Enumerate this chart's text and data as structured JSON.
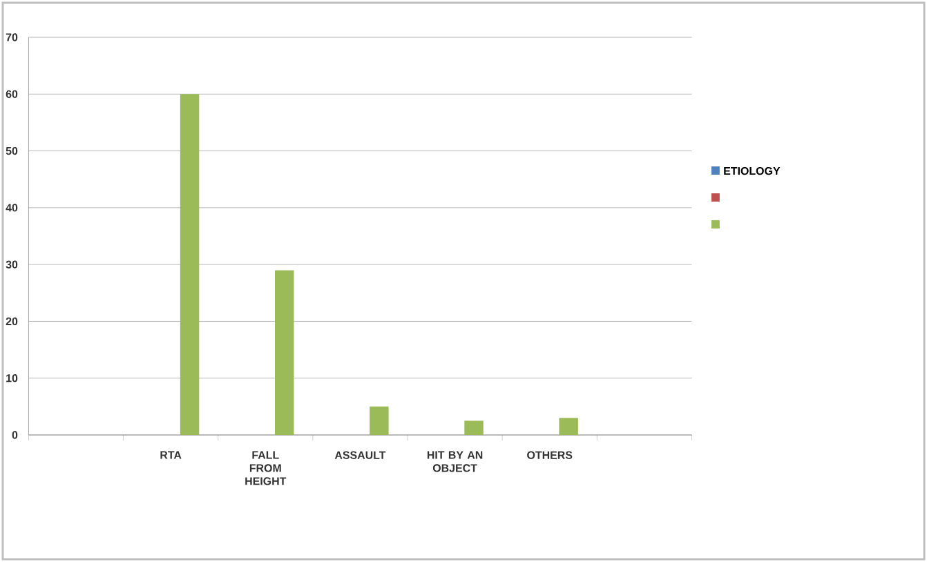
{
  "chart_data": {
    "type": "bar",
    "categories": [
      null,
      "RTA",
      "FALL FROM HEIGHT",
      "ASSAULT",
      "HIT BY AN OBJECT",
      "OTHERS",
      null
    ],
    "series": [
      {
        "name": "ETIOLOGY",
        "color": "#4f81bd",
        "values": [
          null,
          null,
          null,
          null,
          null,
          null,
          null
        ]
      },
      {
        "color": "#c0504d",
        "values": [
          null,
          null,
          null,
          null,
          null,
          null,
          null
        ]
      },
      {
        "color": "#9bbb59",
        "values": [
          null,
          60,
          29,
          5,
          2.5,
          3,
          null
        ]
      }
    ],
    "ylim": [
      0,
      70
    ],
    "yticks": [
      0,
      10,
      20,
      30,
      40,
      50,
      60,
      70
    ],
    "grid": "y",
    "legend": "right"
  }
}
